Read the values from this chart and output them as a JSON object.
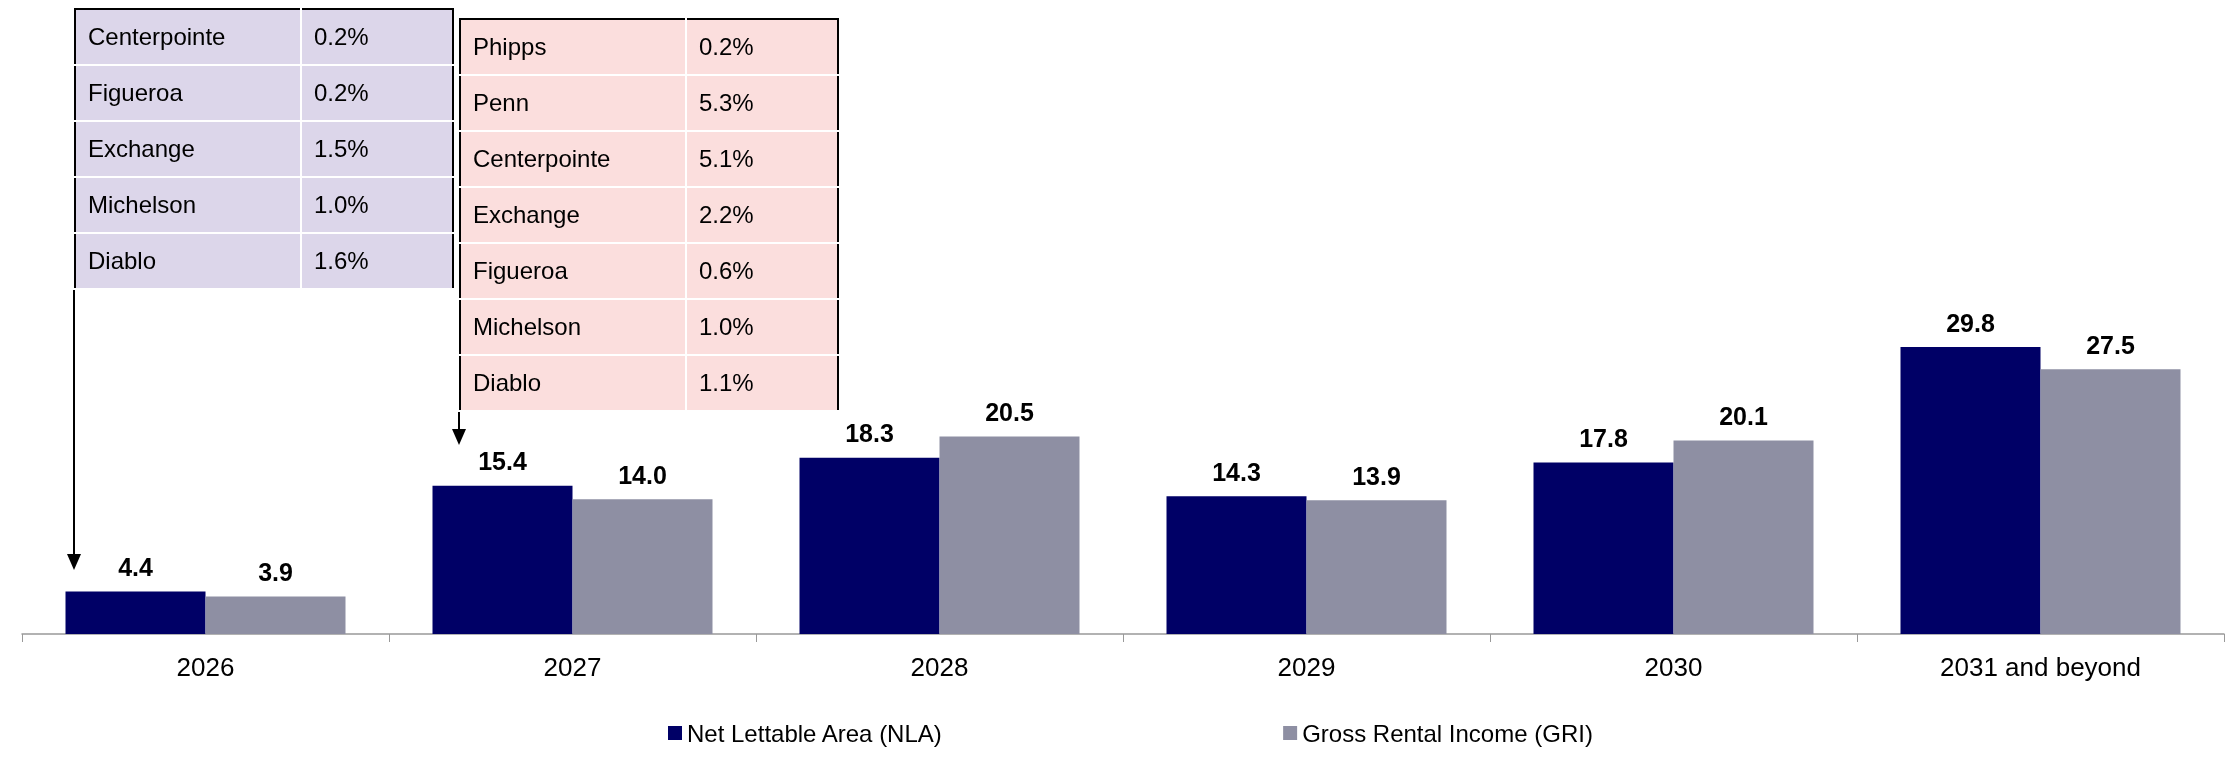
{
  "chart_data": {
    "type": "bar",
    "categories": [
      "2026",
      "2027",
      "2028",
      "2029",
      "2030",
      "2031 and beyond"
    ],
    "series": [
      {
        "name": "Net Lettable Area (NLA)",
        "color": "#000066",
        "values": [
          4.4,
          15.4,
          18.3,
          14.3,
          17.8,
          29.8
        ],
        "value_labels": [
          "4.4",
          "15.4",
          "18.3",
          "14.3",
          "17.8",
          "29.8"
        ]
      },
      {
        "name": "Gross Rental Income (GRI)",
        "color": "#8e8fa3",
        "values": [
          3.9,
          14.0,
          20.5,
          13.9,
          20.1,
          27.5
        ],
        "value_labels": [
          "3.9",
          "14.0",
          "20.5",
          "13.9",
          "20.1",
          "27.5"
        ]
      }
    ],
    "ylim": [
      0,
      65
    ],
    "tick_labels": "x",
    "legend": "bottom",
    "annotations": [
      "Centerpointe",
      "0.2%",
      "Figueroa",
      "0.2%",
      "Exchange",
      "1.5%",
      "Michelson",
      "1.0%",
      "Diablo",
      "1.6%",
      "Phipps",
      "0.2%",
      "Penn",
      "5.3%",
      "Centerpointe",
      "5.1%",
      "Exchange",
      "2.2%",
      "Figueroa",
      "0.6%",
      "Michelson",
      "1.0%",
      "Diablo",
      "1.1%"
    ]
  }
}
